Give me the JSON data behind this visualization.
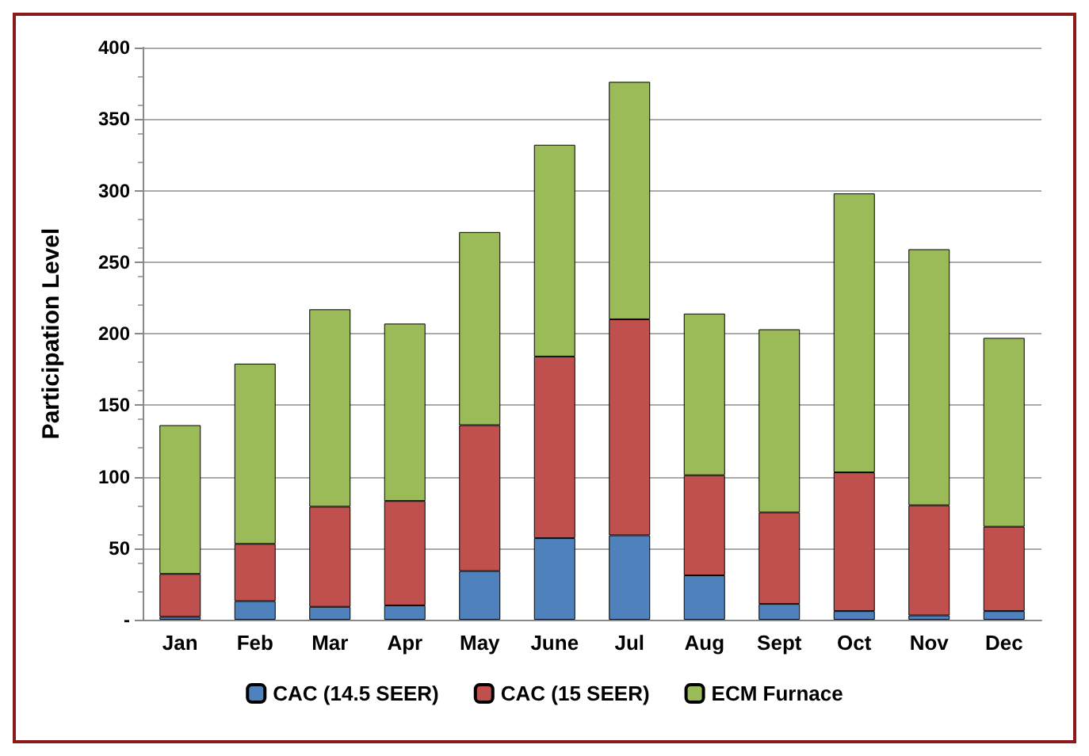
{
  "chart_data": {
    "type": "bar",
    "ylabel": "Participation Level",
    "categories": [
      "Jan",
      "Feb",
      "Mar",
      "Apr",
      "May",
      "June",
      "Jul",
      "Aug",
      "Sept",
      "Oct",
      "Nov",
      "Dec"
    ],
    "stacked": true,
    "series": [
      {
        "name": "CAC (14.5 SEER)",
        "color": "#4f81bd",
        "values": [
          2,
          13,
          9,
          10,
          34,
          57,
          59,
          31,
          11,
          6,
          3,
          6
        ]
      },
      {
        "name": "CAC (15 SEER)",
        "color": "#c0504d",
        "values": [
          30,
          40,
          70,
          73,
          102,
          127,
          151,
          70,
          64,
          97,
          77,
          59
        ]
      },
      {
        "name": "ECM Furnace",
        "color": "#9bbb59",
        "values": [
          104,
          126,
          138,
          124,
          135,
          148,
          166,
          113,
          128,
          195,
          179,
          132
        ]
      }
    ],
    "ylim": [
      0,
      400
    ],
    "yticks": [
      {
        "value": 0,
        "label": "-"
      },
      50,
      100,
      150,
      200,
      250,
      300,
      350,
      400
    ],
    "grid": "y",
    "legend": "bottom"
  }
}
